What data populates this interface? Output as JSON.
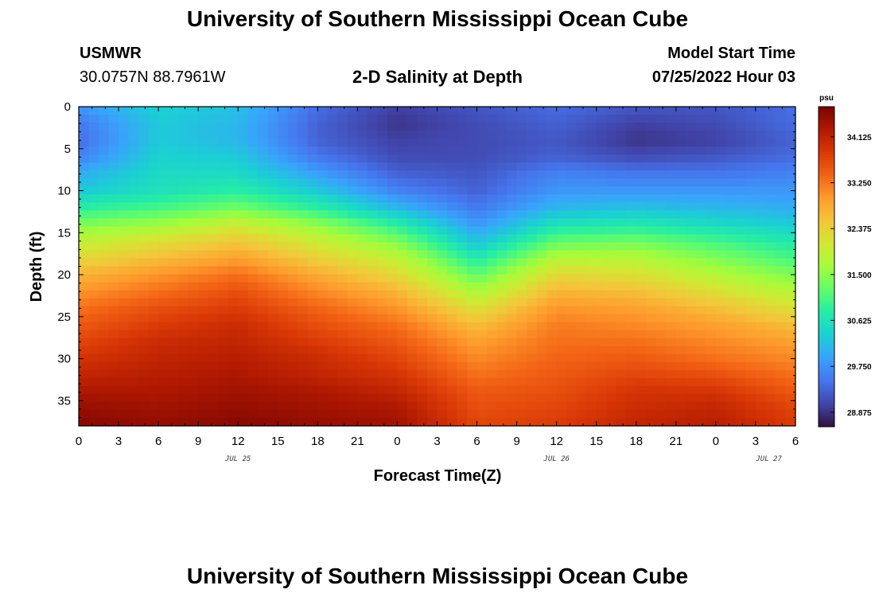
{
  "page": {
    "title_top": "University of Southern Mississippi Ocean Cube",
    "title_bottom": "University of Southern Mississippi Ocean Cube",
    "station_name": "USMWR",
    "station_coords": "30.0757N  88.7961W",
    "subtitle": "2-D Salinity at Depth",
    "model_start_label": "Model Start Time",
    "model_start_value": "07/25/2022 Hour 03"
  },
  "chart_data": {
    "type": "heatmap",
    "title": "2-D Salinity at Depth",
    "xlabel": "Forecast Time(Z)",
    "ylabel": "Depth (ft)",
    "x_tick_labels": [
      "0",
      "3",
      "6",
      "9",
      "12",
      "15",
      "18",
      "21",
      "0",
      "3",
      "6",
      "9",
      "12",
      "15",
      "18",
      "21",
      "0",
      "3",
      "6"
    ],
    "x_range_hours": [
      0,
      54
    ],
    "day_labels": [
      {
        "label": "JUL 25",
        "hour": 12
      },
      {
        "label": "JUL 26",
        "hour": 36
      },
      {
        "label": "JUL 27",
        "hour": 52
      }
    ],
    "y_ticks": [
      0,
      5,
      10,
      15,
      20,
      25,
      30,
      35
    ],
    "ylim": [
      0,
      38
    ],
    "y_reversed": true,
    "colorbar": {
      "unit": "psu",
      "range": [
        28.6,
        34.7
      ],
      "tick_labels": [
        "34.125",
        "33.250",
        "32.375",
        "31.500",
        "30.625",
        "29.750",
        "28.875"
      ]
    },
    "colormap": [
      "#30123b",
      "#4145ab",
      "#4675ed",
      "#39a2fc",
      "#1bcfd4",
      "#24eca6",
      "#61fc6c",
      "#a4fc3b",
      "#d1e834",
      "#f3c63a",
      "#fe9b2d",
      "#f36315",
      "#d93806",
      "#b11901",
      "#7a0402"
    ],
    "depth_levels_ft": [
      0,
      2,
      4,
      6,
      8,
      10,
      12,
      14,
      16,
      18,
      20,
      22,
      24,
      26,
      28,
      30,
      32,
      34,
      36,
      38
    ],
    "time_hours": [
      0,
      6,
      12,
      18,
      24,
      30,
      36,
      42,
      48,
      54
    ],
    "salinity_psu": [
      [
        29.8,
        30.4,
        30.2,
        29.4,
        29.0,
        29.2,
        29.4,
        29.2,
        29.2,
        29.4
      ],
      [
        29.5,
        30.3,
        30.1,
        29.3,
        28.9,
        29.1,
        29.3,
        29.0,
        29.1,
        29.4
      ],
      [
        29.4,
        30.3,
        30.1,
        29.3,
        29.0,
        29.1,
        29.2,
        28.9,
        29.0,
        29.3
      ],
      [
        29.6,
        30.4,
        30.3,
        29.5,
        29.1,
        29.1,
        29.3,
        29.1,
        29.2,
        29.4
      ],
      [
        30.0,
        30.5,
        30.5,
        29.9,
        29.3,
        29.2,
        29.6,
        29.5,
        29.5,
        29.6
      ],
      [
        30.3,
        30.6,
        30.8,
        30.3,
        29.6,
        29.3,
        29.8,
        29.8,
        29.8,
        29.8
      ],
      [
        30.8,
        31.0,
        31.3,
        30.8,
        30.1,
        29.5,
        30.1,
        30.2,
        30.1,
        30.0
      ],
      [
        31.4,
        31.6,
        32.0,
        31.5,
        30.8,
        29.8,
        30.6,
        30.7,
        30.5,
        30.3
      ],
      [
        31.9,
        32.2,
        32.5,
        32.0,
        31.4,
        30.2,
        31.2,
        31.3,
        31.0,
        30.7
      ],
      [
        32.3,
        32.6,
        32.9,
        32.4,
        31.9,
        30.7,
        31.8,
        31.8,
        31.4,
        31.0
      ],
      [
        32.7,
        33.0,
        33.3,
        32.8,
        32.3,
        31.2,
        32.3,
        32.2,
        31.8,
        31.4
      ],
      [
        33.0,
        33.3,
        33.6,
        33.1,
        32.7,
        31.7,
        32.7,
        32.6,
        32.2,
        31.8
      ],
      [
        33.3,
        33.6,
        33.8,
        33.4,
        33.0,
        32.2,
        33.0,
        32.9,
        32.6,
        32.2
      ],
      [
        33.5,
        33.8,
        34.0,
        33.6,
        33.3,
        32.6,
        33.2,
        33.1,
        32.9,
        32.6
      ],
      [
        33.7,
        34.0,
        34.1,
        33.8,
        33.5,
        32.9,
        33.3,
        33.3,
        33.1,
        32.9
      ],
      [
        33.9,
        34.1,
        34.2,
        34.0,
        33.7,
        33.1,
        33.4,
        33.5,
        33.3,
        33.1
      ],
      [
        34.1,
        34.2,
        34.3,
        34.1,
        33.9,
        33.3,
        33.5,
        33.7,
        33.6,
        33.3
      ],
      [
        34.3,
        34.3,
        34.4,
        34.3,
        34.1,
        33.5,
        33.6,
        33.9,
        33.9,
        33.5
      ],
      [
        34.5,
        34.4,
        34.5,
        34.4,
        34.3,
        33.6,
        33.7,
        34.0,
        34.1,
        33.7
      ],
      [
        34.6,
        34.5,
        34.6,
        34.5,
        34.4,
        33.7,
        33.8,
        34.1,
        34.2,
        33.8
      ]
    ]
  }
}
